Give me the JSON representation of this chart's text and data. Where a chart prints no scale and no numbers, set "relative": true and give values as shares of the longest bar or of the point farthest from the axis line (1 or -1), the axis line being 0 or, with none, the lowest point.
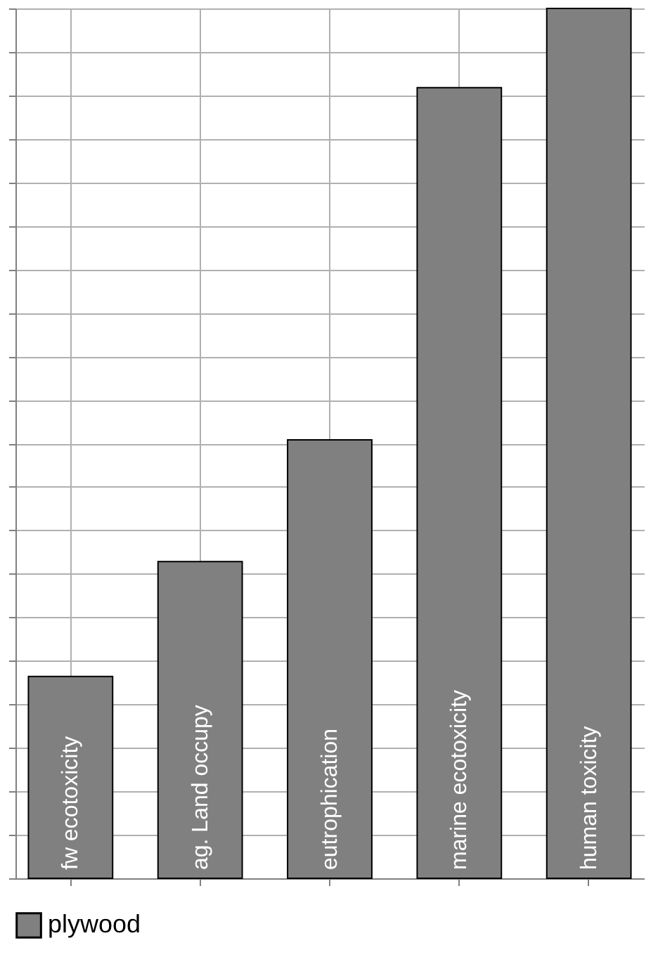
{
  "chart_data": {
    "type": "bar",
    "relative": true,
    "categories": [
      "fw ecotoxicity",
      "ag. Land occupy",
      "eutrophication",
      "marine ecotoxicity",
      "human toxicity"
    ],
    "series": [
      {
        "name": "plywood",
        "color": "#808080",
        "values": [
          0.232,
          0.364,
          0.504,
          0.909,
          1.0
        ]
      }
    ],
    "grid": true,
    "legend": "bottom",
    "tick_labels": false
  }
}
